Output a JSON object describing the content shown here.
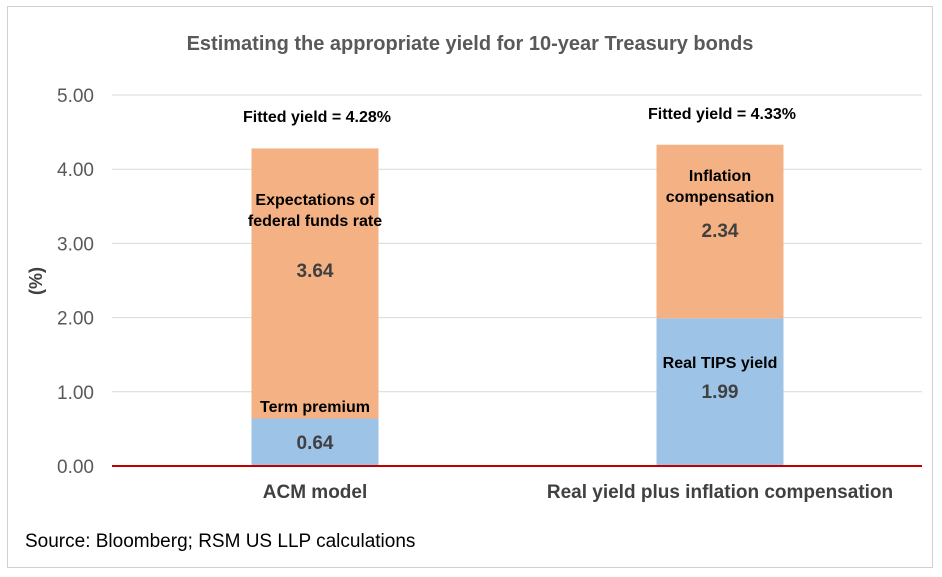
{
  "chart_data": {
    "type": "bar",
    "stacked": true,
    "title": "Estimating the appropriate yield for 10-year Treasury bonds",
    "ylabel": "(%)",
    "xlabel": "",
    "ylim": [
      0,
      5
    ],
    "yticks": [
      "0.00",
      "1.00",
      "2.00",
      "3.00",
      "4.00",
      "5.00"
    ],
    "grid": true,
    "categories": [
      "ACM model",
      "Real yield plus inflation compensation"
    ],
    "bars": [
      {
        "category": "ACM model",
        "total_label": "Fitted yield = 4.28%",
        "total": 4.28,
        "segments": [
          {
            "label": "Term premium",
            "value": 0.64,
            "value_label": "0.64",
            "color": "#9dc3e6"
          },
          {
            "label_lines": [
              "Expectations of",
              "federal funds rate"
            ],
            "value": 3.64,
            "value_label": "3.64",
            "color": "#f4b183"
          }
        ]
      },
      {
        "category": "Real yield plus inflation compensation",
        "total_label": "Fitted yield = 4.33%",
        "total": 4.33,
        "segments": [
          {
            "label": "Real TIPS yield",
            "value": 1.99,
            "value_label": "1.99",
            "color": "#9dc3e6"
          },
          {
            "label_lines": [
              "Inflation",
              "compensation"
            ],
            "value": 2.34,
            "value_label": "2.34",
            "color": "#f4b183"
          }
        ]
      }
    ],
    "baseline_color": "#c00000"
  },
  "source": "Source: Bloomberg; RSM US LLP calculations"
}
